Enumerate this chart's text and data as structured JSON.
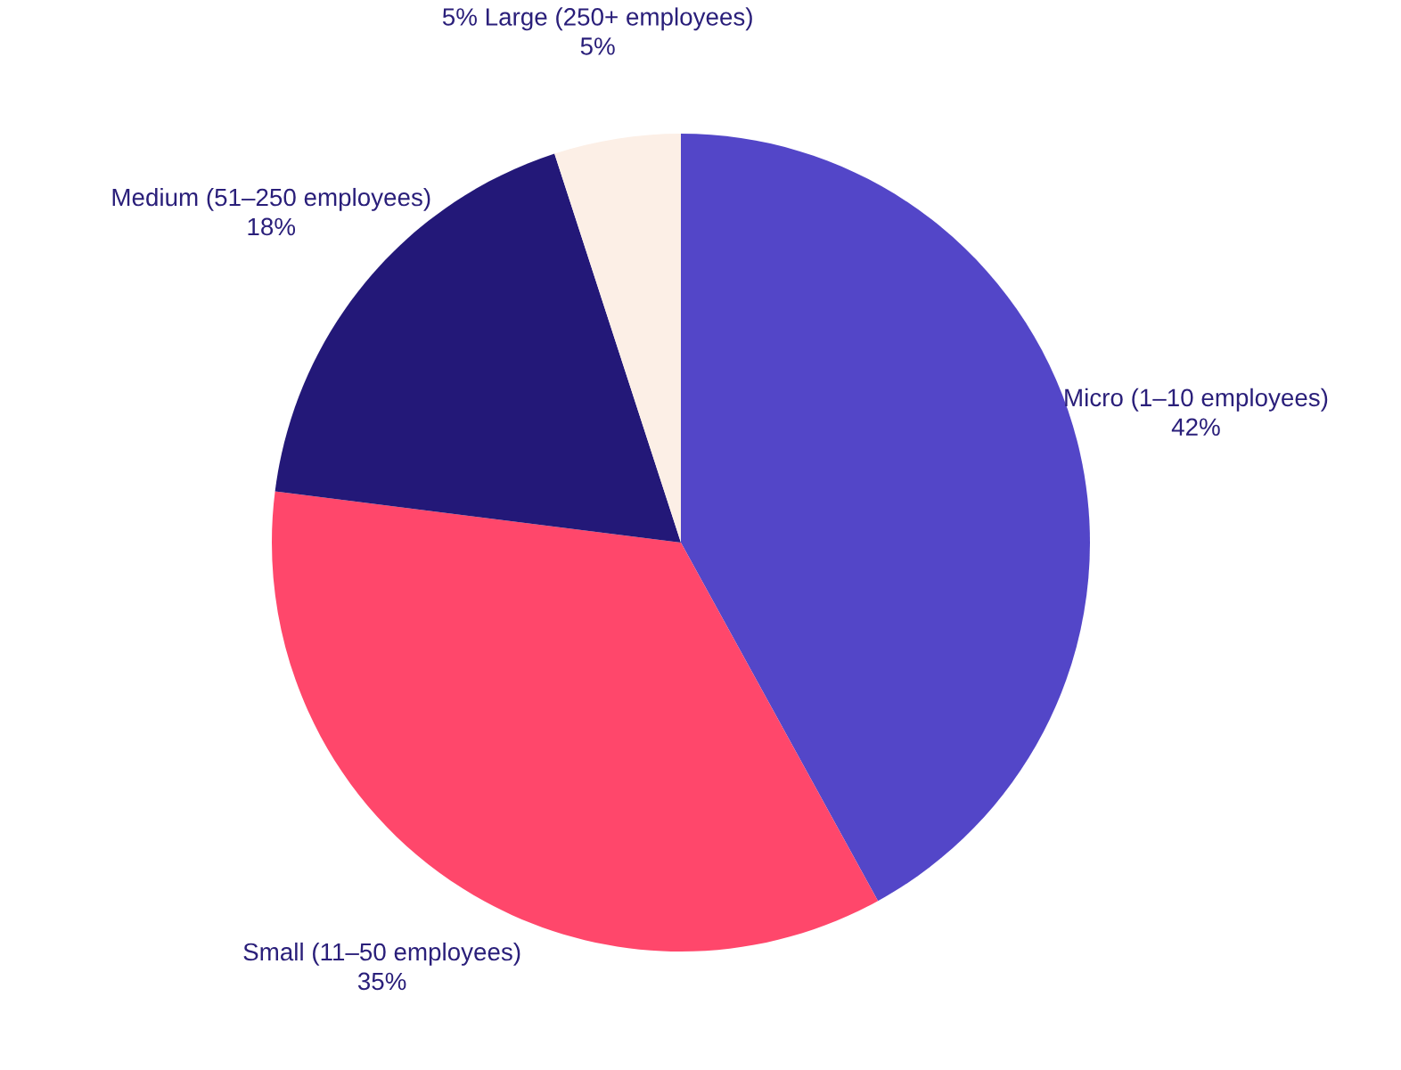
{
  "chart_data": {
    "type": "pie",
    "categories": [
      "Micro (1–10 employees)",
      "Small (11–50 employees)",
      "Medium (51–250 employees)",
      "5% Large (250+ employees)"
    ],
    "values": [
      42,
      35,
      18,
      5
    ],
    "value_labels": [
      "42%",
      "35%",
      "18%",
      "5%"
    ],
    "colors": [
      "#5346c8",
      "#ff476b",
      "#231878",
      "#fcefe6"
    ]
  }
}
